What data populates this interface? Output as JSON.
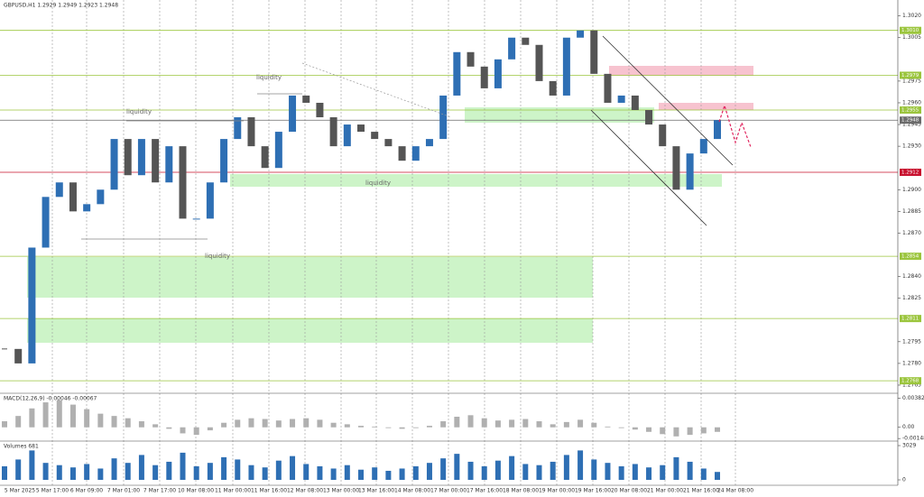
{
  "chart_data": [
    {
      "type": "candlestick",
      "title": "GBPUSD,H1  1.2929 1.2949 1.2923 1.2948",
      "annotations": [
        "liquidity",
        "liquidity",
        "liquidity",
        "liquidity"
      ],
      "x_labels": [
        "5 Mar 2025",
        "5 Mar 17:00",
        "6 Mar 09:00",
        "7 Mar 01:00",
        "7 Mar 17:00",
        "10 Mar 08:00",
        "11 Mar 00:00",
        "11 Mar 16:00",
        "12 Mar 08:00",
        "13 Mar 00:00",
        "13 Mar 16:00",
        "14 Mar 08:00",
        "17 Mar 00:00",
        "17 Mar 16:00",
        "18 Mar 08:00",
        "19 Mar 00:00",
        "19 Mar 16:00",
        "20 Mar 08:00",
        "21 Mar 00:00",
        "21 Mar 16:00",
        "24 Mar 08:00"
      ],
      "values": [
        1.279,
        1.278,
        1.286,
        1.2895,
        1.2905,
        1.2885,
        1.289,
        1.29,
        1.2935,
        1.291,
        1.2935,
        1.2905,
        1.293,
        1.288,
        1.288,
        1.2905,
        1.2935,
        1.295,
        1.293,
        1.2915,
        1.294,
        1.2965,
        1.296,
        1.295,
        1.293,
        1.2945,
        1.294,
        1.2935,
        1.293,
        1.292,
        1.293,
        1.2935,
        1.2965,
        1.2995,
        1.2985,
        1.297,
        1.299,
        1.3005,
        1.3,
        1.2975,
        1.2965,
        1.3005,
        1.301,
        1.298,
        1.296,
        1.2965,
        1.2955,
        1.2945,
        1.293,
        1.29,
        1.2925,
        1.2935,
        1.2948
      ],
      "up_color": "#2e6fb4",
      "down_color": "#555555",
      "ylim": [
        1.276,
        1.3031
      ],
      "yticks": [
        {
          "value": 1.302,
          "label": "1.3020"
        },
        {
          "value": 1.3005,
          "label": "1.3005"
        },
        {
          "value": 1.2975,
          "label": "1.2975"
        },
        {
          "value": 1.296,
          "label": "1.2960"
        },
        {
          "value": 1.2945,
          "label": "1.2945"
        },
        {
          "value": 1.293,
          "label": "1.2930"
        },
        {
          "value": 1.29,
          "label": "1.2900"
        },
        {
          "value": 1.2885,
          "label": "1.2885"
        },
        {
          "value": 1.287,
          "label": "1.2870"
        },
        {
          "value": 1.284,
          "label": "1.2840"
        },
        {
          "value": 1.2825,
          "label": "1.2825"
        },
        {
          "value": 1.2795,
          "label": "1.2795"
        },
        {
          "value": 1.278,
          "label": "1.2780"
        },
        {
          "value": 1.2765,
          "label": "1.2765"
        }
      ],
      "levels": [
        {
          "value": 1.301,
          "label": "1.3010",
          "color": "#9bc53d"
        },
        {
          "value": 1.2979,
          "label": "1.2979",
          "color": "#9bc53d"
        },
        {
          "value": 1.2955,
          "label": "1.2955",
          "color": "#9bc53d"
        },
        {
          "value": 1.2948,
          "label": "1.2948",
          "color": "#6b6b6b"
        },
        {
          "value": 1.2912,
          "label": "1.2912",
          "color": "#c8102e"
        },
        {
          "value": 1.2854,
          "label": "1.2854",
          "color": "#9bc53d"
        },
        {
          "value": 1.2811,
          "label": "1.2811",
          "color": "#9bc53d"
        },
        {
          "value": 1.2768,
          "label": "1.2768",
          "color": "#9bc53d"
        }
      ]
    },
    {
      "type": "bar",
      "title": "MACD(12,26,9) -0.00046 -0.00067",
      "color": "#b0b0b0",
      "values": [
        0.0008,
        0.0015,
        0.0025,
        0.0033,
        0.0036,
        0.003,
        0.0024,
        0.0018,
        0.0015,
        0.0012,
        0.0008,
        0.0004,
        -0.0002,
        -0.0008,
        -0.001,
        -0.0004,
        0.0006,
        0.001,
        0.0012,
        0.0011,
        0.0009,
        0.0011,
        0.0012,
        0.001,
        0.0006,
        0.0004,
        0.0002,
        0.0001,
        -0.0001,
        -0.0002,
        -0.0001,
        0.0002,
        0.0008,
        0.0014,
        0.0016,
        0.0012,
        0.0009,
        0.001,
        0.0011,
        0.0008,
        0.0004,
        0.0007,
        0.001,
        0.0006,
        0.0001,
        -0.0001,
        -0.0003,
        -0.0006,
        -0.0009,
        -0.0012,
        -0.001,
        -0.0008,
        -0.0006
      ],
      "ylim": [
        -0.0017,
        0.0045
      ],
      "yticks": [
        {
          "value": 0.00382,
          "label": "0.00382"
        },
        {
          "value": 0,
          "label": "0.00"
        },
        {
          "value": -0.00148,
          "label": "-0.00148"
        }
      ]
    },
    {
      "type": "bar",
      "title": "Volumes 681",
      "color": "#2e6fb4",
      "values": [
        1200,
        1800,
        2600,
        1500,
        1300,
        1100,
        1400,
        1000,
        1900,
        1500,
        2200,
        1300,
        1600,
        2400,
        1200,
        1500,
        2000,
        1800,
        1300,
        1100,
        1700,
        2100,
        1400,
        1200,
        1000,
        1300,
        900,
        1100,
        800,
        1000,
        1200,
        1500,
        1900,
        2300,
        1600,
        1200,
        1700,
        2100,
        1400,
        1300,
        1600,
        2200,
        2600,
        1800,
        1500,
        1200,
        1400,
        1100,
        1300,
        2000,
        1600,
        1000,
        700
      ],
      "ylim": [
        0,
        3029
      ],
      "yticks": [
        3029,
        0
      ]
    }
  ]
}
